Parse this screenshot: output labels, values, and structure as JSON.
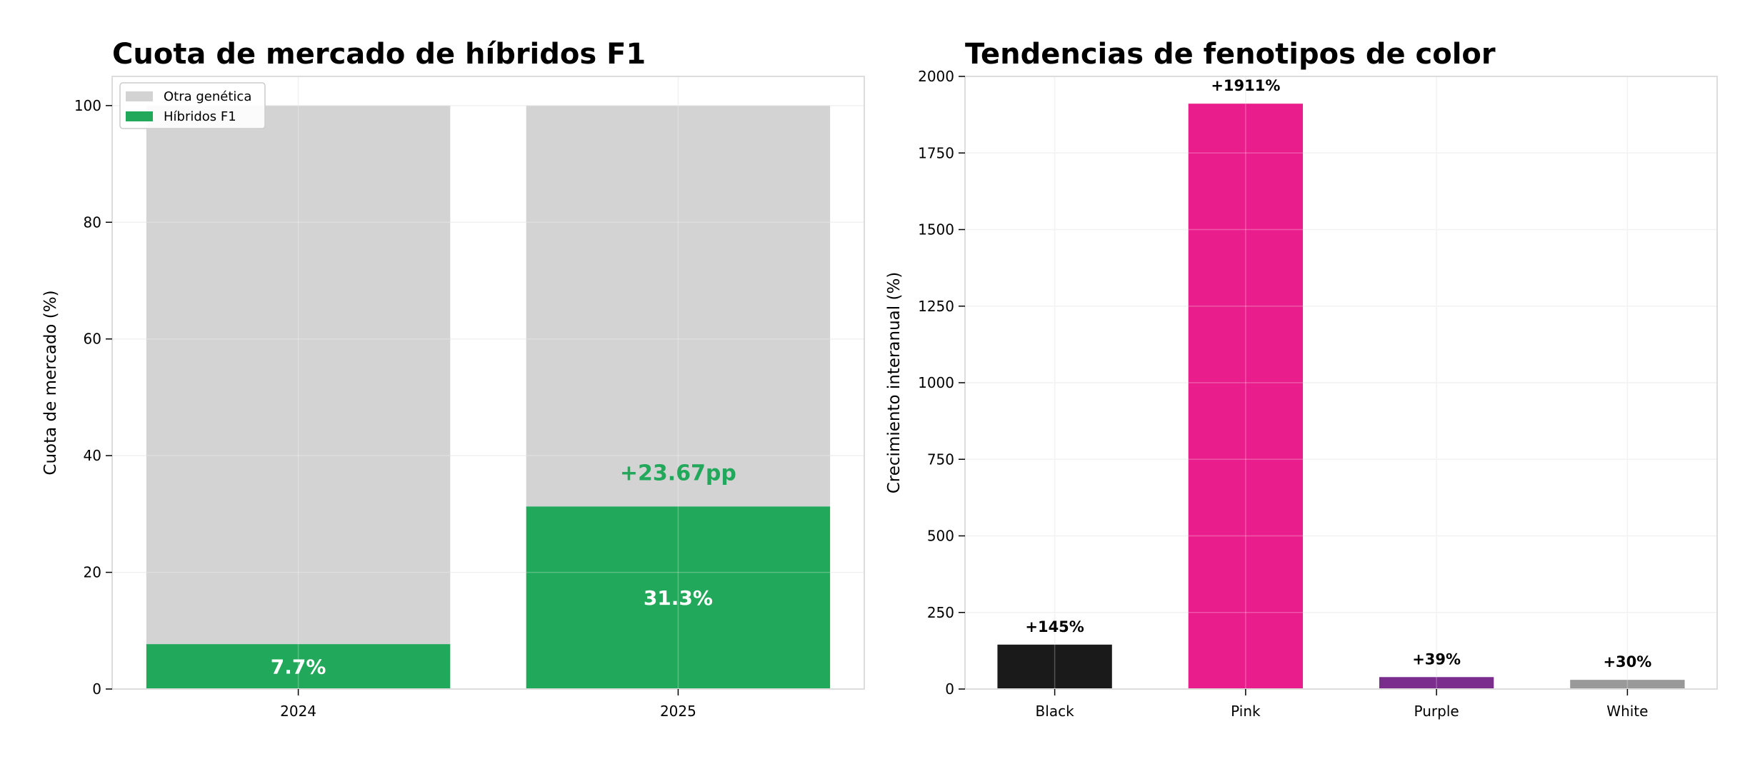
{
  "chart_data": [
    {
      "type": "bar",
      "stacked": true,
      "title": "Cuota de mercado de híbridos F1",
      "xlabel": "",
      "ylabel": "Cuota de mercado (%)",
      "categories": [
        "2024",
        "2025"
      ],
      "ylim": [
        0,
        105
      ],
      "yticks": [
        0,
        20,
        40,
        60,
        80,
        100
      ],
      "grid": true,
      "legend_position": "top-left",
      "series": [
        {
          "name": "Híbridos F1",
          "values": [
            7.7,
            31.3
          ],
          "color": "#22a85a",
          "labels": [
            "7.7%",
            "31.3%"
          ]
        },
        {
          "name": "Otra genética",
          "values": [
            92.3,
            68.7
          ],
          "color": "#d3d3d3"
        }
      ],
      "annotations": [
        {
          "category": "2025",
          "y": 37,
          "text": "+23.67pp",
          "color": "#22a85a"
        }
      ]
    },
    {
      "type": "bar",
      "title": "Tendencias de fenotipos de color",
      "xlabel": "",
      "ylabel": "Crecimiento interanual (%)",
      "categories": [
        "Black",
        "Pink",
        "Purple",
        "White"
      ],
      "values": [
        145,
        1911,
        39,
        30
      ],
      "labels": [
        "+145%",
        "+1911%",
        "+39%",
        "+30%"
      ],
      "colors": [
        "#1a1a1a",
        "#e91e8c",
        "#7b2d8e",
        "#999999"
      ],
      "ylim": [
        0,
        2000
      ],
      "yticks": [
        0,
        250,
        500,
        750,
        1000,
        1250,
        1500,
        1750,
        2000
      ],
      "grid": true
    }
  ]
}
